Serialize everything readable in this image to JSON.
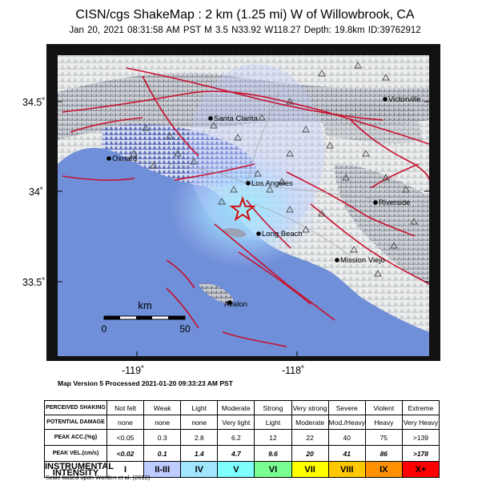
{
  "title": "CISN/cgs ShakeMap : 2 km (1.25 mi) W of Willowbrook, CA",
  "subtitle": "Jan 20, 2021 08:31:58 AM PST   M 3.5   N33.92 W118.27   Depth: 19.8km   ID:39762912",
  "map": {
    "lat_labels": [
      "34.5˚",
      "34˚",
      "33.5˚"
    ],
    "lon_labels": [
      "-119˚",
      "-118˚"
    ],
    "cities": [
      {
        "name": "Victorville"
      },
      {
        "name": "Santa Clarita"
      },
      {
        "name": "Oxnard"
      },
      {
        "name": "Los Angeles"
      },
      {
        "name": "Riverside"
      },
      {
        "name": "Long Beach"
      },
      {
        "name": "Mission Viejo"
      },
      {
        "name": "Avalon"
      }
    ],
    "scalebar": {
      "unit": "km",
      "start": "0",
      "end": "50"
    },
    "colors": {
      "ocean": "#6f8fd8",
      "land": "#e9eaec",
      "fault": "#c8102e",
      "epicenter": "#d01010"
    }
  },
  "version_text": "Map Version 5 Processed 2021-01-20 09:33:23 AM PST",
  "intensity_scale": {
    "row_labels": {
      "shaking": "PERCEIVED SHAKING",
      "damage": "POTENTIAL DAMAGE",
      "acc": "PEAK ACC.(%g)",
      "vel": "PEAK VEL.(cm/s)",
      "instrumental": "INSTRUMENTAL INTENSITY"
    },
    "columns": [
      {
        "shaking": "Not felt",
        "damage": "none",
        "acc": "<0.05",
        "vel": "<0.02",
        "mmi": "I",
        "color": "#ffffff"
      },
      {
        "shaking": "Weak",
        "damage": "none",
        "acc": "0.3",
        "vel": "0.1",
        "mmi": "II-III",
        "color": "#bfccff"
      },
      {
        "shaking": "Light",
        "damage": "none",
        "acc": "2.8",
        "vel": "1.4",
        "mmi": "IV",
        "color": "#a0e6ff"
      },
      {
        "shaking": "Moderate",
        "damage": "Very light",
        "acc": "6.2",
        "vel": "4.7",
        "mmi": "V",
        "color": "#80ffff"
      },
      {
        "shaking": "Strong",
        "damage": "Light",
        "acc": "12",
        "vel": "9.6",
        "mmi": "VI",
        "color": "#7aff93"
      },
      {
        "shaking": "Very strong",
        "damage": "Moderate",
        "acc": "22",
        "vel": "20",
        "mmi": "VII",
        "color": "#ffff00"
      },
      {
        "shaking": "Severe",
        "damage": "Mod./Heavy",
        "acc": "40",
        "vel": "41",
        "mmi": "VIII",
        "color": "#ffc800"
      },
      {
        "shaking": "Violent",
        "damage": "Heavy",
        "acc": "75",
        "vel": "86",
        "mmi": "IX",
        "color": "#ff9100"
      },
      {
        "shaking": "Extreme",
        "damage": "Very Heavy",
        "acc": ">139",
        "vel": ">178",
        "mmi": "X+",
        "color": "#ff0000"
      }
    ]
  },
  "footnote": "Scale based upon Worden et al. (2012)"
}
